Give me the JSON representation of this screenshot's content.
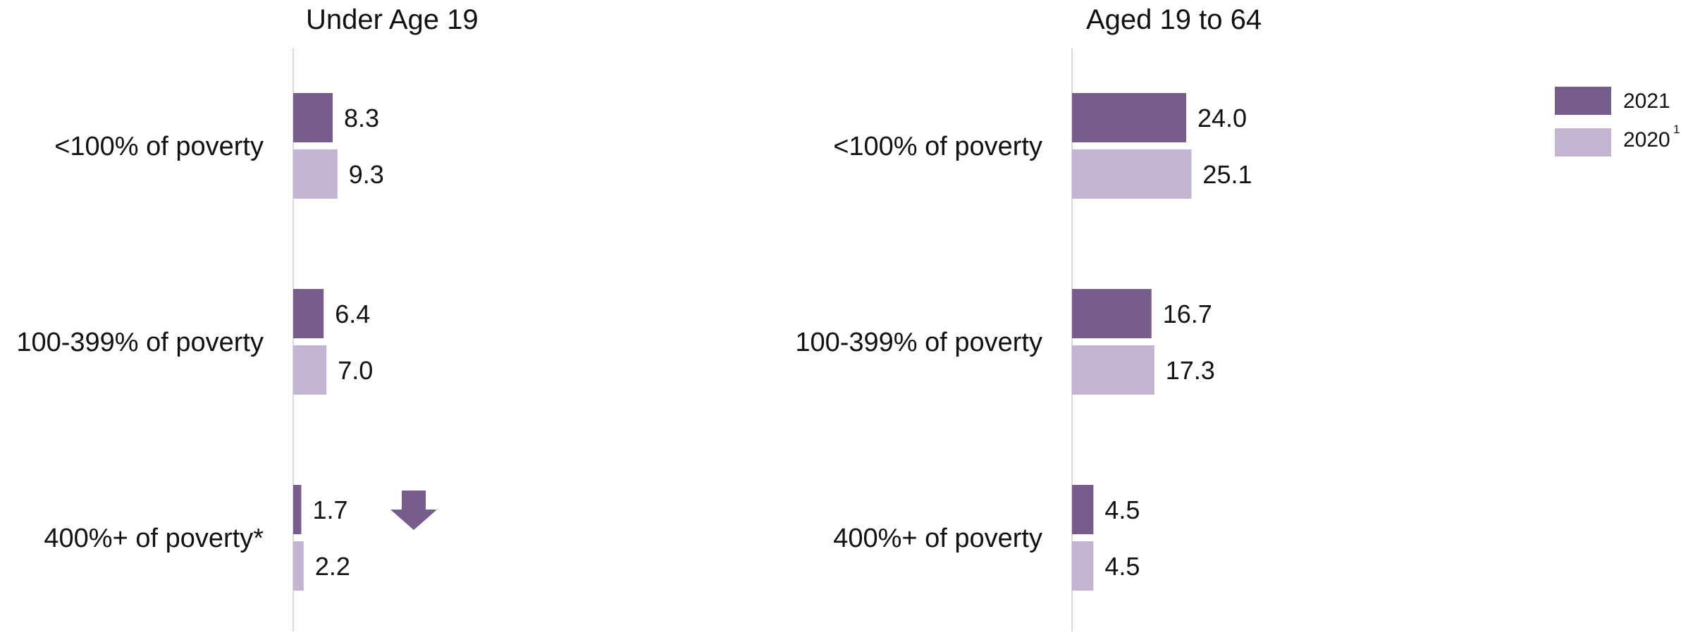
{
  "chart_data": [
    {
      "type": "bar",
      "title": "Under Age 19",
      "categories": [
        "<100% of poverty",
        "100-399% of poverty",
        "400%+ of poverty*"
      ],
      "series": [
        {
          "name": "2021",
          "values": [
            8.3,
            6.4,
            1.7
          ]
        },
        {
          "name": "2020",
          "values": [
            9.3,
            7.0,
            2.2
          ]
        }
      ],
      "value_labels": [
        [
          "8.3",
          "6.4",
          "1.7"
        ],
        [
          "9.3",
          "7.0",
          "2.2"
        ]
      ],
      "annotations": [
        {
          "type": "down-arrow",
          "category": "400%+ of poverty*",
          "meaning": "significant decrease"
        }
      ],
      "xlim": [
        0,
        30
      ],
      "orientation": "horizontal",
      "grid": false
    },
    {
      "type": "bar",
      "title": "Aged 19 to 64",
      "categories": [
        "<100% of poverty",
        "100-399% of poverty",
        "400%+ of poverty"
      ],
      "series": [
        {
          "name": "2021",
          "values": [
            24.0,
            16.7,
            4.5
          ]
        },
        {
          "name": "2020",
          "values": [
            25.1,
            17.3,
            4.5
          ]
        }
      ],
      "value_labels": [
        [
          "24.0",
          "16.7",
          "4.5"
        ],
        [
          "25.1",
          "17.3",
          "4.5"
        ]
      ],
      "annotations": [],
      "xlim": [
        0,
        30
      ],
      "orientation": "horizontal",
      "grid": false
    }
  ],
  "legend": {
    "placement": "top-right",
    "items": [
      {
        "label": "2021",
        "superscript": "",
        "color": "#775C8E"
      },
      {
        "label": "2020",
        "superscript": "1",
        "color": "#C3B4D1"
      }
    ]
  },
  "colors": {
    "series_2021": "#775C8E",
    "series_2020": "#C3B4D1",
    "axis": "#D9D9D9",
    "arrow": "#775C8E"
  },
  "icons": {
    "decrease_marker": "down-arrow-icon"
  }
}
